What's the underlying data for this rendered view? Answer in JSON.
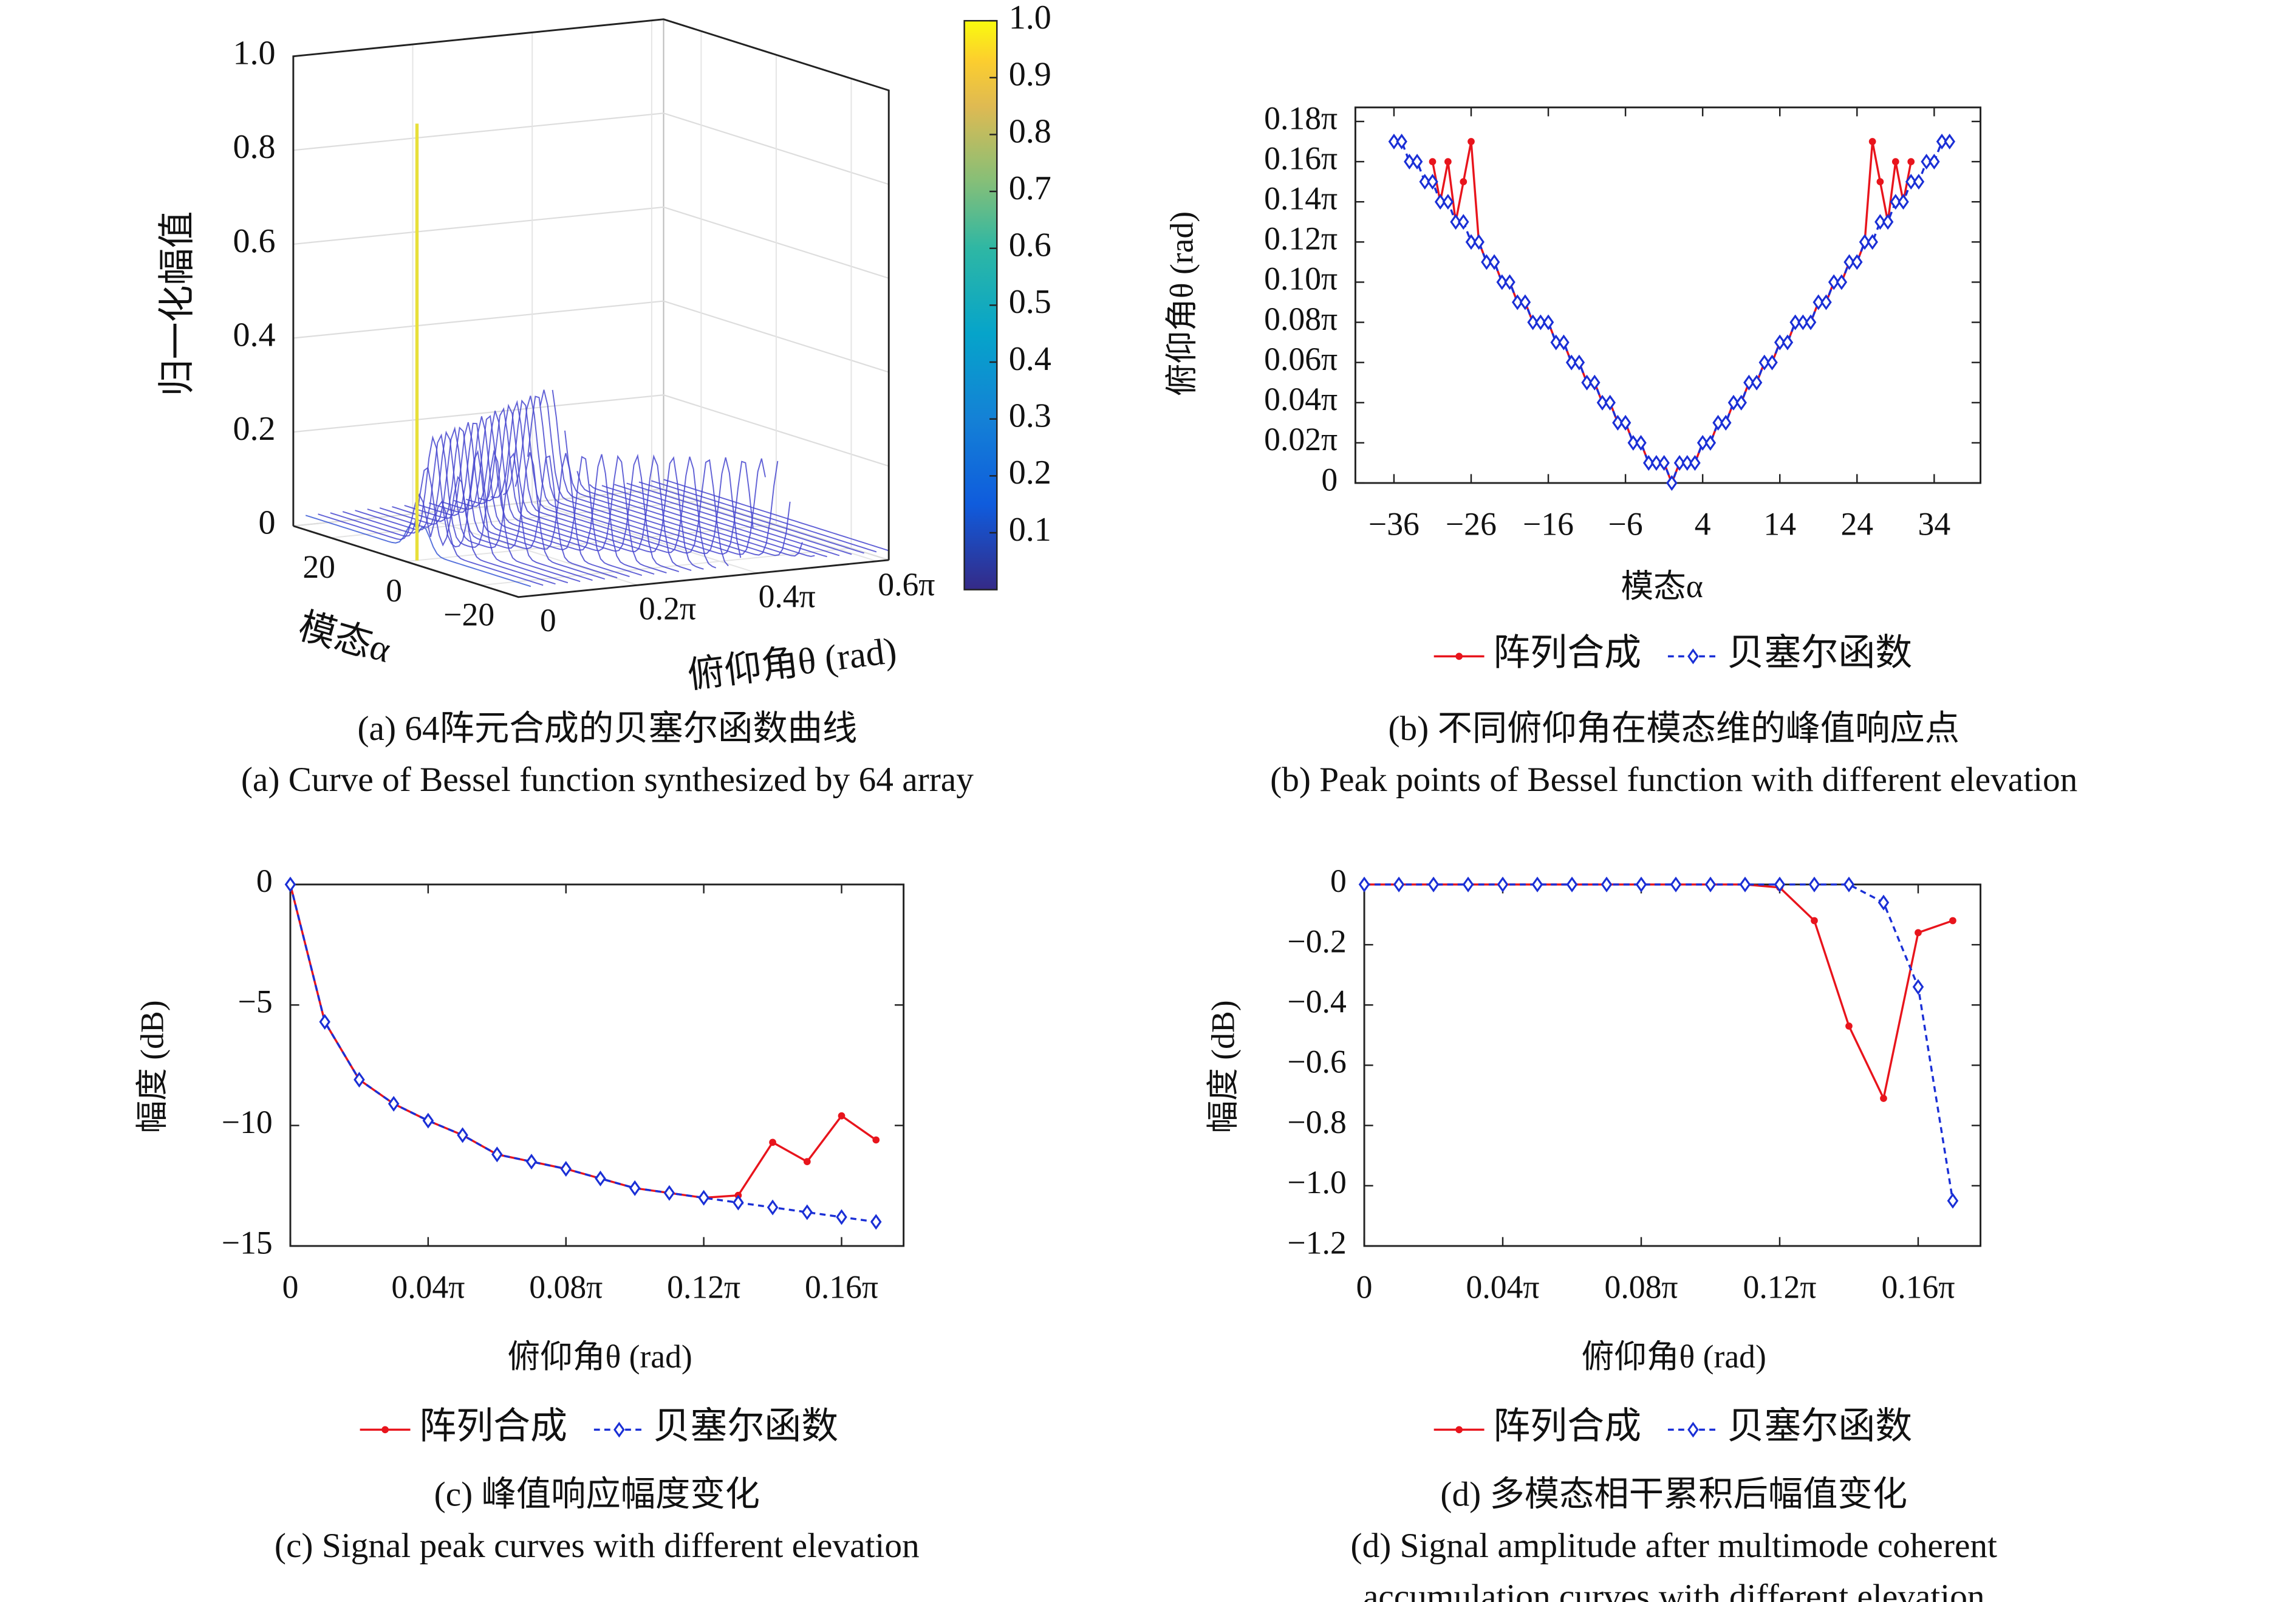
{
  "chart_data": [
    {
      "type": "surface3d",
      "zlabel": "归一化幅值",
      "xlabel": "俯仰角θ (rad)",
      "ylabel": "模态α",
      "xlim": [
        0,
        0.62
      ],
      "ylim": [
        -30,
        30
      ],
      "zlim": [
        0,
        1
      ],
      "xticks": [
        0,
        {
          "value": 0.2,
          "label": "0.2π"
        },
        {
          "value": 0.4,
          "label": "0.4π"
        },
        {
          "value": 0.6,
          "label": "0.6π"
        }
      ],
      "yticks": [
        20,
        0,
        {
          "value": -20,
          "label": "−20"
        }
      ],
      "zticks": [
        0,
        0.2,
        0.4,
        0.6,
        0.8,
        {
          "value": 1,
          "label": "1.0"
        }
      ],
      "clim": [
        0,
        1
      ],
      "cticks": [
        0.1,
        0.2,
        0.3,
        0.4,
        0.5,
        0.6,
        0.7,
        0.8,
        0.9,
        {
          "value": 1,
          "label": "1.0"
        }
      ],
      "caption": [
        "(a) 64阵元合成的贝塞尔函数曲线",
        "(a) Curve of Bessel function synthesized by 64 array"
      ]
    },
    {
      "type": "line",
      "xlabel": "模态α",
      "ylabel": "俯仰角θ (rad)",
      "xlim": [
        -41,
        40
      ],
      "ylim": [
        0,
        0.187
      ],
      "xticks": [
        {
          "value": -36,
          "label": "−36"
        },
        {
          "value": -26,
          "label": "−26"
        },
        {
          "value": -16,
          "label": "−16"
        },
        {
          "value": -6,
          "label": "−6"
        },
        4,
        14,
        24,
        34
      ],
      "yticks": [
        0,
        {
          "value": 0.02,
          "label": "0.02π"
        },
        {
          "value": 0.04,
          "label": "0.04π"
        },
        {
          "value": 0.06,
          "label": "0.06π"
        },
        {
          "value": 0.08,
          "label": "0.08π"
        },
        {
          "value": 0.1,
          "label": "0.10π"
        },
        {
          "value": 0.12,
          "label": "0.12π"
        },
        {
          "value": 0.14,
          "label": "0.14π"
        },
        {
          "value": 0.16,
          "label": "0.16π"
        },
        {
          "value": 0.18,
          "label": "0.18π"
        }
      ],
      "x": [
        -36,
        -35,
        -34,
        -33,
        -32,
        -31,
        -30,
        -29,
        -28,
        -27,
        -26,
        -25,
        -24,
        -23,
        -22,
        -21,
        -20,
        -19,
        -18,
        -17,
        -16,
        -15,
        -14,
        -13,
        -12,
        -11,
        -10,
        -9,
        -8,
        -7,
        -6,
        -5,
        -4,
        -3,
        -2,
        -1,
        0,
        1,
        2,
        3,
        4,
        5,
        6,
        7,
        8,
        9,
        10,
        11,
        12,
        13,
        14,
        15,
        16,
        17,
        18,
        19,
        20,
        21,
        22,
        23,
        24,
        25,
        26,
        27,
        28,
        29,
        30,
        31,
        32,
        33,
        34,
        35,
        36
      ],
      "series": [
        {
          "name": "阵列合成",
          "color": "#e8141c",
          "marker": "circle",
          "values": [
            null,
            null,
            null,
            null,
            null,
            0.16,
            0.14,
            0.16,
            0.13,
            0.15,
            0.17,
            0.12,
            0.11,
            0.11,
            0.1,
            0.1,
            0.09,
            0.09,
            0.08,
            0.08,
            0.08,
            0.07,
            0.07,
            0.06,
            0.06,
            0.05,
            0.05,
            0.04,
            0.04,
            0.03,
            0.03,
            0.02,
            0.02,
            0.01,
            0.01,
            0.01,
            0,
            0.01,
            0.01,
            0.01,
            0.02,
            0.02,
            0.03,
            0.03,
            0.04,
            0.04,
            0.05,
            0.05,
            0.06,
            0.06,
            0.07,
            0.07,
            0.08,
            0.08,
            0.08,
            0.09,
            0.09,
            0.1,
            0.1,
            0.11,
            0.11,
            0.12,
            0.17,
            0.15,
            0.13,
            0.16,
            0.14,
            0.16,
            null,
            null,
            null,
            null,
            null
          ]
        },
        {
          "name": "贝塞尔函数",
          "color": "#1a2fd6",
          "marker": "diamond",
          "dashed": true,
          "values": [
            0.17,
            0.17,
            0.16,
            0.16,
            0.15,
            0.15,
            0.14,
            0.14,
            0.13,
            0.13,
            0.12,
            0.12,
            0.11,
            0.11,
            0.1,
            0.1,
            0.09,
            0.09,
            0.08,
            0.08,
            0.08,
            0.07,
            0.07,
            0.06,
            0.06,
            0.05,
            0.05,
            0.04,
            0.04,
            0.03,
            0.03,
            0.02,
            0.02,
            0.01,
            0.01,
            0.01,
            0,
            0.01,
            0.01,
            0.01,
            0.02,
            0.02,
            0.03,
            0.03,
            0.04,
            0.04,
            0.05,
            0.05,
            0.06,
            0.06,
            0.07,
            0.07,
            0.08,
            0.08,
            0.08,
            0.09,
            0.09,
            0.1,
            0.1,
            0.11,
            0.11,
            0.12,
            0.12,
            0.13,
            0.13,
            0.14,
            0.14,
            0.15,
            0.15,
            0.16,
            0.16,
            0.17,
            0.17
          ]
        }
      ],
      "caption": [
        "(b) 不同俯仰角在模态维的峰值响应点",
        "(b) Peak points of Bessel function with different elevation"
      ]
    },
    {
      "type": "line",
      "xlabel": "俯仰角θ (rad)",
      "ylabel": "幅度 (dB)",
      "xlim": [
        0,
        0.178
      ],
      "ylim": [
        -15,
        0
      ],
      "xticks": [
        0,
        {
          "value": 0.04,
          "label": "0.04π"
        },
        {
          "value": 0.08,
          "label": "0.08π"
        },
        {
          "value": 0.12,
          "label": "0.12π"
        },
        {
          "value": 0.16,
          "label": "0.16π"
        }
      ],
      "yticks": [
        0,
        {
          "value": -5,
          "label": "−5"
        },
        {
          "value": -10,
          "label": "−10"
        },
        {
          "value": -15,
          "label": "−15"
        }
      ],
      "x": [
        0,
        0.01,
        0.02,
        0.03,
        0.04,
        0.05,
        0.06,
        0.07,
        0.08,
        0.09,
        0.1,
        0.11,
        0.12,
        0.13,
        0.14,
        0.15,
        0.16,
        0.17
      ],
      "series": [
        {
          "name": "阵列合成",
          "color": "#e8141c",
          "marker": "circle",
          "values": [
            0,
            -5.7,
            -8.1,
            -9.1,
            -9.8,
            -10.4,
            -11.2,
            -11.5,
            -11.8,
            -12.2,
            -12.6,
            -12.8,
            -13.0,
            -12.9,
            -10.7,
            -11.5,
            -9.6,
            -10.6
          ]
        },
        {
          "name": "贝塞尔函数",
          "color": "#1a2fd6",
          "marker": "diamond",
          "dashed": true,
          "values": [
            0,
            -5.7,
            -8.1,
            -9.1,
            -9.8,
            -10.4,
            -11.2,
            -11.5,
            -11.8,
            -12.2,
            -12.6,
            -12.8,
            -13.0,
            -13.2,
            -13.4,
            -13.6,
            -13.8,
            -14.0
          ]
        }
      ],
      "caption": [
        "(c) 峰值响应幅度变化",
        "(c) Signal peak curves with different elevation"
      ]
    },
    {
      "type": "line",
      "xlabel": "俯仰角θ (rad)",
      "ylabel": "幅度 (dB)",
      "xlim": [
        0,
        0.178
      ],
      "ylim": [
        -1.2,
        0
      ],
      "xticks": [
        0,
        {
          "value": 0.04,
          "label": "0.04π"
        },
        {
          "value": 0.08,
          "label": "0.08π"
        },
        {
          "value": 0.12,
          "label": "0.12π"
        },
        {
          "value": 0.16,
          "label": "0.16π"
        }
      ],
      "yticks": [
        0,
        {
          "value": -0.2,
          "label": "−0.2"
        },
        {
          "value": -0.4,
          "label": "−0.4"
        },
        {
          "value": -0.6,
          "label": "−0.6"
        },
        {
          "value": -0.8,
          "label": "−0.8"
        },
        {
          "value": -1,
          "label": "−1.0"
        },
        {
          "value": -1.2,
          "label": "−1.2"
        }
      ],
      "x": [
        0,
        0.01,
        0.02,
        0.03,
        0.04,
        0.05,
        0.06,
        0.07,
        0.08,
        0.09,
        0.1,
        0.11,
        0.12,
        0.13,
        0.14,
        0.15,
        0.16,
        0.17
      ],
      "series": [
        {
          "name": "阵列合成",
          "color": "#e8141c",
          "marker": "circle",
          "values": [
            0,
            0,
            0,
            0,
            0,
            0,
            0,
            0,
            0,
            0,
            0,
            0,
            -0.01,
            -0.12,
            -0.47,
            -0.71,
            -0.16,
            -0.12
          ]
        },
        {
          "name": "贝塞尔函数",
          "color": "#1a2fd6",
          "marker": "diamond",
          "dashed": true,
          "values": [
            0,
            0,
            0,
            0,
            0,
            0,
            0,
            0,
            0,
            0,
            0,
            0,
            0,
            0,
            0,
            -0.06,
            -0.34,
            -1.05
          ]
        }
      ],
      "caption": [
        "(d) 多模态相干累积后幅值变化",
        "(d) Signal amplitude after multimode coherent",
        "accumulation curves with different elevation"
      ]
    }
  ]
}
